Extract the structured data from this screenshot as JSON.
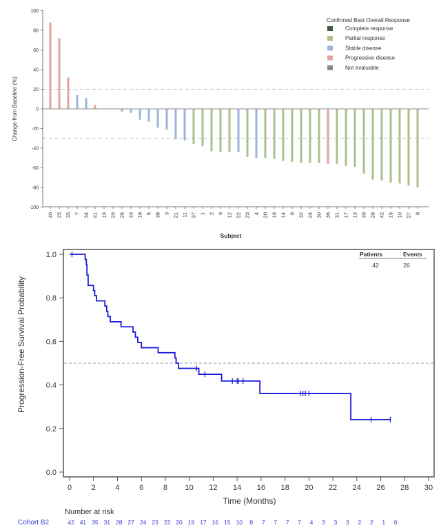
{
  "chart_data": [
    {
      "type": "bar",
      "subtype": "waterfall",
      "title": "",
      "xlabel": "Subject",
      "ylabel": "Change from Baseline (%)",
      "ylim": [
        -100,
        100
      ],
      "yticks": [
        100,
        80,
        60,
        40,
        20,
        0,
        -20,
        -40,
        -60,
        -80,
        -100
      ],
      "reference_lines": [
        20,
        -30
      ],
      "legend": {
        "title": "Confirmed Best Overall Response",
        "placement": "top-right",
        "entries": [
          {
            "key": "CR",
            "label": "Complete response",
            "color": "#3d5a3a"
          },
          {
            "key": "PR",
            "label": "Partial response",
            "color": "#a9c08a"
          },
          {
            "key": "SD",
            "label": "Stable disease",
            "color": "#9ab4dd"
          },
          {
            "key": "PD",
            "label": "Progressive disease",
            "color": "#e0a3a0"
          },
          {
            "key": "NE",
            "label": "Not evaluable",
            "color": "#888888"
          }
        ]
      },
      "categories": [
        "40",
        "25",
        "35",
        "7",
        "34",
        "41",
        "19",
        "29",
        "26",
        "33",
        "18",
        "5",
        "38",
        "3",
        "21",
        "11",
        "37",
        "1",
        "2",
        "9",
        "12",
        "22",
        "23",
        "4",
        "20",
        "16",
        "14",
        "6",
        "32",
        "24",
        "30",
        "36",
        "31",
        "17",
        "13",
        "39",
        "28",
        "42",
        "15",
        "10",
        "27",
        "8"
      ],
      "values": [
        88,
        72,
        32,
        14,
        11,
        4,
        0,
        0,
        -3,
        -4,
        -11,
        -13,
        -19,
        -21,
        -31,
        -32,
        -36,
        -38,
        -43,
        -44,
        -44,
        -44,
        -49,
        -50,
        -50,
        -51,
        -53,
        -54,
        -55,
        -55,
        -55,
        -56,
        -56,
        -58,
        -59,
        -66,
        -72,
        -73,
        -75,
        -76,
        -78,
        -80
      ],
      "response": [
        "PD",
        "PD",
        "PD",
        "SD",
        "SD",
        "PD",
        "NE",
        "NE",
        "PD",
        "SD",
        "SD",
        "SD",
        "SD",
        "SD",
        "SD",
        "SD",
        "PR",
        "PR",
        "PR",
        "PR",
        "PR",
        "SD",
        "PR",
        "SD",
        "PR",
        "PR",
        "PR",
        "PR",
        "PR",
        "PR",
        "PR",
        "PD",
        "PR",
        "PR",
        "PR",
        "PR",
        "PR",
        "PR",
        "PR",
        "PR",
        "PR",
        "PR"
      ]
    },
    {
      "type": "line",
      "subtype": "kaplan-meier",
      "title": "",
      "xlabel": "Time (Months)",
      "ylabel": "Progression-Free Survival Probability",
      "xlim": [
        0,
        30
      ],
      "ylim": [
        0,
        1.0
      ],
      "xticks": [
        0,
        2,
        4,
        6,
        8,
        10,
        12,
        14,
        16,
        18,
        20,
        22,
        24,
        26,
        28,
        30
      ],
      "yticks": [
        "0.0",
        "0.2",
        "0.4",
        "0.6",
        "0.8",
        "1.0"
      ],
      "reference_lines": [
        0.5
      ],
      "series": [
        {
          "name": "Cohort B2",
          "color": "#1a1adb",
          "steps": [
            [
              0,
              1.0
            ],
            [
              1.3,
              0.976
            ],
            [
              1.4,
              0.952
            ],
            [
              1.45,
              0.905
            ],
            [
              1.55,
              0.857
            ],
            [
              2.0,
              0.833
            ],
            [
              2.1,
              0.81
            ],
            [
              2.25,
              0.786
            ],
            [
              2.95,
              0.762
            ],
            [
              3.1,
              0.738
            ],
            [
              3.2,
              0.714
            ],
            [
              3.4,
              0.69
            ],
            [
              4.3,
              0.667
            ],
            [
              5.3,
              0.643
            ],
            [
              5.5,
              0.619
            ],
            [
              5.7,
              0.595
            ],
            [
              6.0,
              0.571
            ],
            [
              7.4,
              0.548
            ],
            [
              8.8,
              0.524
            ],
            [
              8.9,
              0.5
            ],
            [
              9.1,
              0.476
            ],
            [
              10.8,
              0.449
            ],
            [
              12.7,
              0.418
            ],
            [
              15.9,
              0.361
            ],
            [
              23.5,
              0.241
            ],
            [
              26.8,
              0.241
            ]
          ],
          "censored": [
            0.2,
            10.6,
            11.3,
            13.6,
            14.0,
            14.1,
            14.5,
            19.3,
            19.5,
            19.7,
            20.0,
            25.2,
            26.8
          ]
        }
      ],
      "summary_table": {
        "headers": [
          "Patients",
          "Events"
        ],
        "values": [
          "42",
          "26"
        ]
      },
      "risk_table": {
        "title": "Number at risk",
        "group": "Cohort B2",
        "values": [
          "42",
          "41",
          "35",
          "31",
          "28",
          "27",
          "24",
          "23",
          "22",
          "20",
          "19",
          "17",
          "16",
          "15",
          "10",
          "8",
          "7",
          "7",
          "7",
          "7",
          "4",
          "3",
          "3",
          "3",
          "2",
          "2",
          "1",
          "0"
        ]
      }
    }
  ]
}
